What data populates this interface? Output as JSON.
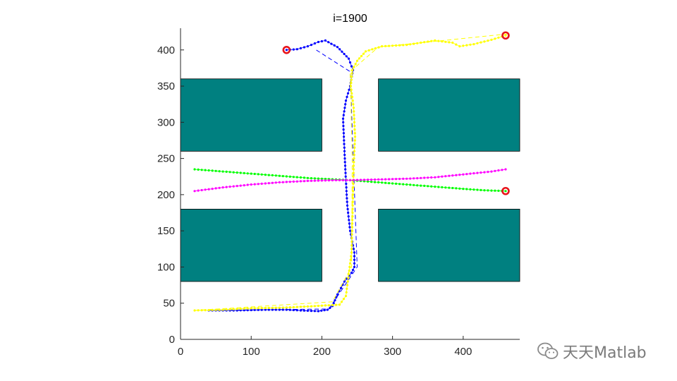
{
  "chart_data": {
    "type": "line",
    "title": "i=1900",
    "xlim": [
      0,
      480
    ],
    "ylim": [
      0,
      430
    ],
    "xticks": [
      "0",
      "100",
      "200",
      "300",
      "400"
    ],
    "yticks": [
      "0",
      "50",
      "100",
      "150",
      "200",
      "250",
      "300",
      "350",
      "400"
    ],
    "grid": false,
    "legend": "none",
    "obstacles": [
      {
        "x": [
          0,
          200
        ],
        "y": [
          260,
          360
        ]
      },
      {
        "x": [
          280,
          480
        ],
        "y": [
          260,
          360
        ]
      },
      {
        "x": [
          0,
          200
        ],
        "y": [
          80,
          180
        ]
      },
      {
        "x": [
          280,
          480
        ],
        "y": [
          80,
          180
        ]
      }
    ],
    "obstacle_color": "#008080",
    "series": [
      {
        "color": "#0000ff",
        "dotted": [
          [
            40,
            40
          ],
          [
            80,
            40
          ],
          [
            120,
            41
          ],
          [
            150,
            41
          ],
          [
            170,
            40
          ],
          [
            195,
            39
          ],
          [
            208,
            41
          ],
          [
            215,
            46
          ],
          [
            222,
            62
          ],
          [
            232,
            80
          ],
          [
            242,
            92
          ],
          [
            246,
            100
          ],
          [
            246,
            120
          ],
          [
            240,
            150
          ],
          [
            236,
            185
          ],
          [
            234,
            220
          ],
          [
            232,
            260
          ],
          [
            230,
            305
          ],
          [
            234,
            330
          ],
          [
            240,
            350
          ],
          [
            244,
            372
          ],
          [
            238,
            388
          ],
          [
            222,
            404
          ],
          [
            205,
            413
          ],
          [
            195,
            411
          ],
          [
            180,
            405
          ],
          [
            165,
            401
          ],
          [
            150,
            400
          ]
        ],
        "dashed": [
          [
            40,
            40
          ],
          [
            210,
            42
          ],
          [
            250,
            100
          ],
          [
            240,
            370
          ],
          [
            192,
            400
          ]
        ],
        "markers": [
          [
            150,
            400
          ]
        ]
      },
      {
        "color": "#ffff00",
        "dotted": [
          [
            20,
            40
          ],
          [
            60,
            41
          ],
          [
            100,
            43
          ],
          [
            150,
            44
          ],
          [
            190,
            46
          ],
          [
            225,
            48
          ],
          [
            234,
            60
          ],
          [
            238,
            90
          ],
          [
            242,
            120
          ],
          [
            243,
            160
          ],
          [
            244,
            200
          ],
          [
            245,
            240
          ],
          [
            247,
            280
          ],
          [
            245,
            320
          ],
          [
            241,
            350
          ],
          [
            243,
            372
          ],
          [
            250,
            385
          ],
          [
            262,
            398
          ],
          [
            285,
            405
          ],
          [
            320,
            407
          ],
          [
            360,
            413
          ],
          [
            385,
            410
          ],
          [
            395,
            405
          ],
          [
            415,
            408
          ],
          [
            440,
            414
          ],
          [
            460,
            420
          ]
        ],
        "dashed": [
          [
            20,
            40
          ],
          [
            215,
            52
          ],
          [
            242,
            100
          ],
          [
            243,
            250
          ],
          [
            240,
            370
          ],
          [
            280,
            404
          ],
          [
            462,
            422
          ]
        ],
        "markers": [
          [
            460,
            420
          ]
        ]
      },
      {
        "color": "#00ff00",
        "dotted": [
          [
            20,
            235
          ],
          [
            60,
            232
          ],
          [
            100,
            229
          ],
          [
            140,
            226
          ],
          [
            180,
            223
          ],
          [
            220,
            221
          ],
          [
            240,
            220
          ],
          [
            280,
            217
          ],
          [
            320,
            214
          ],
          [
            360,
            211
          ],
          [
            400,
            208
          ],
          [
            430,
            206
          ],
          [
            460,
            205
          ]
        ],
        "dashed": [],
        "markers": [
          [
            460,
            205
          ]
        ]
      },
      {
        "color": "#ff00ff",
        "dotted": [
          [
            20,
            205
          ],
          [
            60,
            210
          ],
          [
            100,
            214
          ],
          [
            140,
            217
          ],
          [
            180,
            219
          ],
          [
            220,
            220
          ],
          [
            240,
            220
          ],
          [
            280,
            221
          ],
          [
            320,
            222
          ],
          [
            360,
            224
          ],
          [
            400,
            228
          ],
          [
            440,
            232
          ],
          [
            460,
            235
          ]
        ],
        "dashed": [],
        "markers": []
      }
    ]
  },
  "watermark": {
    "text": "天天Matlab",
    "icon": "wechat-icon"
  }
}
